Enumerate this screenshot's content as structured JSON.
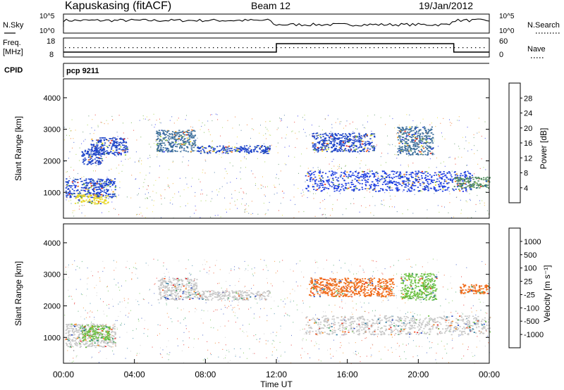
{
  "header": {
    "station": "Kapuskasing (fitACF)",
    "beam": "Beam 12",
    "date": "19/Jan/2012"
  },
  "top_panels": {
    "nsky_label": "N.Sky",
    "nsky_ticks": [
      "10^5",
      "10^0"
    ],
    "nsearch_label": "N.Search",
    "nsearch_ticks": [
      "10^5",
      "10^0"
    ],
    "freq_label": "Freq.",
    "freq_unit": "[MHz]",
    "freq_ticks": [
      "18",
      "8"
    ],
    "nave_label": "Nave",
    "nave_ticks": [
      "60",
      "0"
    ],
    "cpid_label": "CPID",
    "cpid_value": "pcp 9211"
  },
  "chart_data": [
    {
      "type": "heatmap",
      "panel": "power",
      "ylabel": "Slant Range [km]",
      "yticks": [
        "4000",
        "3000",
        "2000",
        "1000"
      ],
      "ylim": [
        180,
        4600
      ],
      "xlim_hours": [
        0,
        24
      ],
      "colorbar": {
        "label": "Power [dB]",
        "ticks": [
          "28",
          "24",
          "20",
          "16",
          "12",
          "8",
          "4"
        ],
        "colors": [
          "#1f25f0",
          "#1e45c8",
          "#3a6d9a",
          "#4f8a5e",
          "#6bb040",
          "#9ccf3a",
          "#e8d82a",
          "#f0a21e",
          "#f06a18",
          "#e8281a"
        ]
      },
      "regions": [
        {
          "h0": 0.1,
          "h1": 2.9,
          "r0": 850,
          "r1": 1450,
          "color": "#1f45d0"
        },
        {
          "h0": 0.6,
          "h1": 2.5,
          "r0": 650,
          "r1": 950,
          "color": "#e8d82a"
        },
        {
          "h0": 1.0,
          "h1": 2.2,
          "r0": 1900,
          "r1": 2400,
          "color": "#1e45c8"
        },
        {
          "h0": 1.5,
          "h1": 3.6,
          "r0": 2200,
          "r1": 2750,
          "color": "#1e45c8"
        },
        {
          "h0": 5.2,
          "h1": 7.4,
          "r0": 2300,
          "r1": 3000,
          "color": "#3a6d9a"
        },
        {
          "h0": 7.5,
          "h1": 11.6,
          "r0": 2250,
          "r1": 2500,
          "color": "#1e45c8"
        },
        {
          "h0": 13.6,
          "h1": 23.0,
          "r0": 1050,
          "r1": 1700,
          "color": "#1e3fe0"
        },
        {
          "h0": 14.0,
          "h1": 17.5,
          "r0": 2300,
          "r1": 2900,
          "color": "#1e45c8"
        },
        {
          "h0": 18.8,
          "h1": 20.8,
          "r0": 2200,
          "r1": 3100,
          "color": "#3a6d9a"
        },
        {
          "h0": 22.0,
          "h1": 24.0,
          "r0": 1150,
          "r1": 1500,
          "color": "#4f8a5e"
        }
      ]
    },
    {
      "type": "heatmap",
      "panel": "velocity",
      "ylabel": "Slant Range [km]",
      "xlabel": "Time UT",
      "yticks": [
        "4000",
        "3000",
        "2000",
        "1000"
      ],
      "xticks": [
        "00:00",
        "04:00",
        "08:00",
        "12:00",
        "16:00",
        "20:00",
        "00:00"
      ],
      "ylim": [
        180,
        4600
      ],
      "xlim_hours": [
        0,
        24
      ],
      "colorbar": {
        "label": "Velocity [m s⁻¹]",
        "ticks": [
          "1000",
          "500",
          "100",
          "25",
          "-25",
          "-100",
          "-500",
          "-1000"
        ],
        "colors": [
          "#e82020",
          "#f04a18",
          "#f08a20",
          "#c8c8c8",
          "#c8c8c8",
          "#6bc040",
          "#3aa060",
          "#2a7aa0",
          "#2a48c0"
        ]
      },
      "regions": [
        {
          "h0": 0.1,
          "h1": 2.9,
          "r0": 700,
          "r1": 1450,
          "color": "#c8c8c8"
        },
        {
          "h0": 1.0,
          "h1": 2.6,
          "r0": 900,
          "r1": 1400,
          "color": "#6bc040"
        },
        {
          "h0": 5.3,
          "h1": 7.5,
          "r0": 2200,
          "r1": 2900,
          "color": "#c8c8c8"
        },
        {
          "h0": 7.5,
          "h1": 11.6,
          "r0": 2200,
          "r1": 2500,
          "color": "#c8c8c8"
        },
        {
          "h0": 13.6,
          "h1": 24.0,
          "r0": 1100,
          "r1": 1700,
          "color": "#c8c8c8"
        },
        {
          "h0": 13.8,
          "h1": 18.6,
          "r0": 2300,
          "r1": 2900,
          "color": "#f06a18"
        },
        {
          "h0": 19.0,
          "h1": 21.0,
          "r0": 2200,
          "r1": 3050,
          "color": "#6bc040"
        },
        {
          "h0": 22.3,
          "h1": 24.0,
          "r0": 2400,
          "r1": 2700,
          "color": "#f06a18"
        }
      ]
    }
  ]
}
